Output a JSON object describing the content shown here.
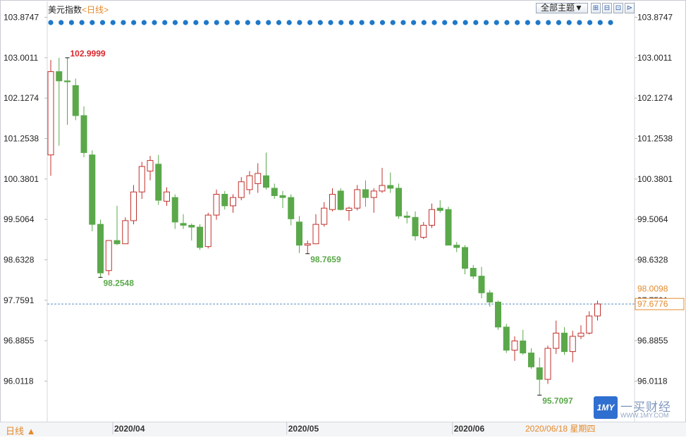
{
  "header": {
    "title": "美元指数",
    "period_link": "<日线>",
    "theme_button": "全部主题▼",
    "buttons": [
      "⊞",
      "⊟",
      "⊡",
      "⊳"
    ]
  },
  "footer": {
    "period_button": "日线 ▲",
    "cursor_date": "2020/06/18 星期四"
  },
  "logo": {
    "badge": "1MY",
    "name": "一买财经",
    "url": "WWW.1MY.COM"
  },
  "chart_data": {
    "type": "candlestick",
    "title": "美元指数",
    "period": "日线",
    "y_ticks": [
      103.8747,
      103.0011,
      102.1274,
      101.2538,
      100.3801,
      99.5064,
      98.6328,
      97.7591,
      96.8855,
      96.0118
    ],
    "ylim": [
      95.15,
      104.2
    ],
    "x_ticks": [
      {
        "label": "2020/04",
        "index": 8
      },
      {
        "label": "2020/05",
        "index": 29
      },
      {
        "label": "2020/06",
        "index": 49
      }
    ],
    "up_color": "#c0302b",
    "down_color": "#5aa84a",
    "candles": [
      {
        "o": 100.9,
        "h": 102.95,
        "l": 100.45,
        "c": 102.7
      },
      {
        "o": 102.7,
        "h": 103.0,
        "l": 101.1,
        "c": 102.5
      },
      {
        "o": 102.5,
        "h": 103.0,
        "l": 101.55,
        "c": 102.48
      },
      {
        "o": 102.4,
        "h": 102.55,
        "l": 101.65,
        "c": 101.75
      },
      {
        "o": 101.75,
        "h": 101.95,
        "l": 100.85,
        "c": 100.95
      },
      {
        "o": 100.9,
        "h": 101.0,
        "l": 99.25,
        "c": 99.4
      },
      {
        "o": 99.4,
        "h": 99.5,
        "l": 98.25,
        "c": 98.35
      },
      {
        "o": 98.4,
        "h": 99.05,
        "l": 98.3,
        "c": 99.05
      },
      {
        "o": 99.05,
        "h": 99.8,
        "l": 98.95,
        "c": 98.98
      },
      {
        "o": 98.98,
        "h": 99.55,
        "l": 98.98,
        "c": 99.48
      },
      {
        "o": 99.48,
        "h": 100.25,
        "l": 99.4,
        "c": 100.1
      },
      {
        "o": 100.1,
        "h": 100.75,
        "l": 99.95,
        "c": 100.65
      },
      {
        "o": 100.55,
        "h": 100.88,
        "l": 100.35,
        "c": 100.78
      },
      {
        "o": 100.7,
        "h": 100.9,
        "l": 99.82,
        "c": 99.92
      },
      {
        "o": 99.9,
        "h": 100.2,
        "l": 99.8,
        "c": 100.1
      },
      {
        "o": 99.98,
        "h": 100.05,
        "l": 99.3,
        "c": 99.45
      },
      {
        "o": 99.42,
        "h": 99.62,
        "l": 99.3,
        "c": 99.38
      },
      {
        "o": 99.38,
        "h": 99.42,
        "l": 99.05,
        "c": 99.34
      },
      {
        "o": 99.34,
        "h": 99.4,
        "l": 98.85,
        "c": 98.9
      },
      {
        "o": 98.92,
        "h": 99.65,
        "l": 98.88,
        "c": 99.6
      },
      {
        "o": 99.6,
        "h": 100.15,
        "l": 99.5,
        "c": 100.05
      },
      {
        "o": 100.05,
        "h": 100.12,
        "l": 99.72,
        "c": 99.8
      },
      {
        "o": 99.8,
        "h": 100.05,
        "l": 99.65,
        "c": 99.98
      },
      {
        "o": 99.98,
        "h": 100.42,
        "l": 99.92,
        "c": 100.32
      },
      {
        "o": 100.15,
        "h": 100.55,
        "l": 100.05,
        "c": 100.45
      },
      {
        "o": 100.28,
        "h": 100.72,
        "l": 100.08,
        "c": 100.5
      },
      {
        "o": 100.45,
        "h": 100.95,
        "l": 100.15,
        "c": 100.2
      },
      {
        "o": 100.18,
        "h": 100.28,
        "l": 99.95,
        "c": 100.02
      },
      {
        "o": 100.02,
        "h": 100.12,
        "l": 99.75,
        "c": 99.98
      },
      {
        "o": 99.98,
        "h": 100.05,
        "l": 99.38,
        "c": 99.52
      },
      {
        "o": 99.45,
        "h": 99.58,
        "l": 98.78,
        "c": 98.95
      },
      {
        "o": 98.95,
        "h": 99.05,
        "l": 98.77,
        "c": 98.98
      },
      {
        "o": 98.98,
        "h": 99.62,
        "l": 98.98,
        "c": 99.4
      },
      {
        "o": 99.4,
        "h": 99.88,
        "l": 99.35,
        "c": 99.75
      },
      {
        "o": 99.72,
        "h": 100.18,
        "l": 99.68,
        "c": 100.05
      },
      {
        "o": 100.12,
        "h": 100.18,
        "l": 99.7,
        "c": 99.72
      },
      {
        "o": 99.7,
        "h": 99.78,
        "l": 99.48,
        "c": 99.75
      },
      {
        "o": 99.75,
        "h": 100.25,
        "l": 99.7,
        "c": 100.15
      },
      {
        "o": 100.15,
        "h": 100.35,
        "l": 99.78,
        "c": 99.98
      },
      {
        "o": 99.98,
        "h": 100.18,
        "l": 99.65,
        "c": 100.12
      },
      {
        "o": 100.12,
        "h": 100.62,
        "l": 100.08,
        "c": 100.24
      },
      {
        "o": 100.24,
        "h": 100.52,
        "l": 100.08,
        "c": 100.18
      },
      {
        "o": 100.18,
        "h": 100.28,
        "l": 99.52,
        "c": 99.58
      },
      {
        "o": 99.58,
        "h": 99.68,
        "l": 99.42,
        "c": 99.55
      },
      {
        "o": 99.55,
        "h": 99.68,
        "l": 99.05,
        "c": 99.15
      },
      {
        "o": 99.12,
        "h": 99.45,
        "l": 99.08,
        "c": 99.38
      },
      {
        "o": 99.38,
        "h": 99.85,
        "l": 99.32,
        "c": 99.72
      },
      {
        "o": 99.75,
        "h": 99.92,
        "l": 99.65,
        "c": 99.7
      },
      {
        "o": 99.72,
        "h": 99.78,
        "l": 98.95,
        "c": 98.95
      },
      {
        "o": 98.95,
        "h": 99.02,
        "l": 98.8,
        "c": 98.9
      },
      {
        "o": 98.9,
        "h": 98.95,
        "l": 98.32,
        "c": 98.45
      },
      {
        "o": 98.45,
        "h": 98.52,
        "l": 98.22,
        "c": 98.28
      },
      {
        "o": 98.28,
        "h": 98.48,
        "l": 97.8,
        "c": 97.92
      },
      {
        "o": 97.92,
        "h": 97.98,
        "l": 97.62,
        "c": 97.72
      },
      {
        "o": 97.72,
        "h": 97.75,
        "l": 97.12,
        "c": 97.18
      },
      {
        "o": 97.18,
        "h": 97.25,
        "l": 96.62,
        "c": 96.68
      },
      {
        "o": 96.68,
        "h": 96.98,
        "l": 96.45,
        "c": 96.88
      },
      {
        "o": 96.88,
        "h": 97.12,
        "l": 96.58,
        "c": 96.62
      },
      {
        "o": 96.62,
        "h": 96.72,
        "l": 96.28,
        "c": 96.32
      },
      {
        "o": 96.3,
        "h": 96.52,
        "l": 95.72,
        "c": 96.05
      },
      {
        "o": 96.05,
        "h": 96.78,
        "l": 95.95,
        "c": 96.72
      },
      {
        "o": 96.72,
        "h": 97.32,
        "l": 96.6,
        "c": 97.05
      },
      {
        "o": 97.05,
        "h": 97.18,
        "l": 96.58,
        "c": 96.65
      },
      {
        "o": 96.65,
        "h": 97.1,
        "l": 96.42,
        "c": 96.98
      },
      {
        "o": 96.98,
        "h": 97.22,
        "l": 96.92,
        "c": 97.05
      },
      {
        "o": 97.05,
        "h": 97.52,
        "l": 97.02,
        "c": 97.42
      },
      {
        "o": 97.42,
        "h": 97.75,
        "l": 97.32,
        "c": 97.68
      }
    ],
    "annotations": [
      {
        "text": "102.9999",
        "index": 2,
        "value": 102.9999,
        "color": "#d9272e"
      },
      {
        "text": "98.2548",
        "index": 6,
        "value": 98.2548,
        "color": "#5aa84a"
      },
      {
        "text": "98.7659",
        "index": 31,
        "value": 98.7659,
        "color": "#5aa84a"
      },
      {
        "text": "95.7097",
        "index": 59,
        "value": 95.7097,
        "color": "#5aa84a"
      }
    ],
    "price_line": 97.6776,
    "right_labels": [
      {
        "text": "98.0098",
        "value": 98.0098,
        "color": "#e38a2b",
        "boxed": false
      },
      {
        "text": "97.6776",
        "value": 97.6776,
        "color": "#e38a2b",
        "boxed": true
      }
    ],
    "event_dots_count": 55
  }
}
